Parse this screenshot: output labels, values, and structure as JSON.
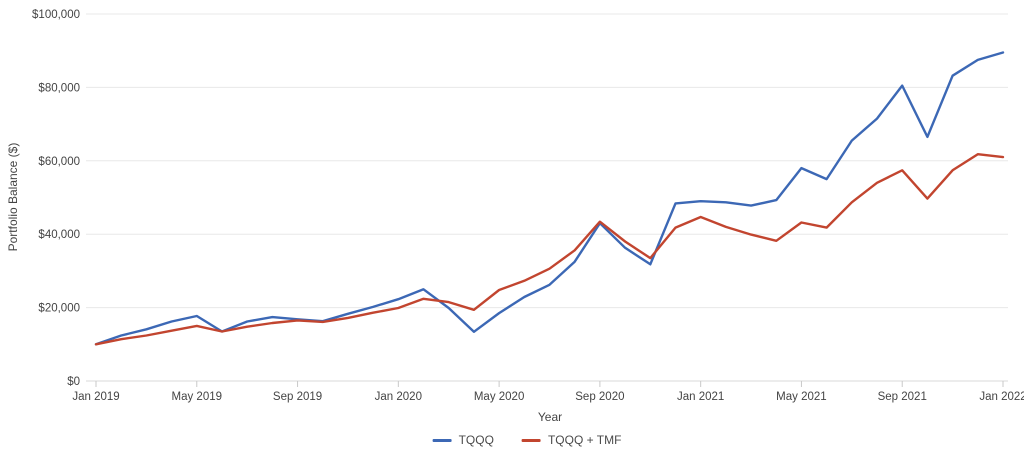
{
  "chart_data": {
    "type": "line",
    "title": "",
    "xlabel": "Year",
    "ylabel": "Portfolio Balance ($)",
    "x_tick_labels": [
      "Jan 2019",
      "May 2019",
      "Sep 2019",
      "Jan 2020",
      "May 2020",
      "Sep 2020",
      "Jan 2021",
      "May 2021",
      "Sep 2021",
      "Jan 2022"
    ],
    "x_tick_indices": [
      0,
      4,
      8,
      12,
      16,
      20,
      24,
      28,
      32,
      36
    ],
    "x_interval": "monthly",
    "y_ticks": [
      0,
      20000,
      40000,
      60000,
      80000,
      100000
    ],
    "y_tick_labels": [
      "$0",
      "$20,000",
      "$40,000",
      "$60,000",
      "$80,000",
      "$100,000"
    ],
    "ylim": [
      0,
      100000
    ],
    "grid": true,
    "legend_position": "bottom-center",
    "series": [
      {
        "name": "TQQQ",
        "color": "#3c68b5",
        "values": [
          10000,
          12400,
          14100,
          16200,
          17700,
          13500,
          16200,
          17400,
          16800,
          16300,
          18300,
          20200,
          22300,
          25000,
          19900,
          13400,
          18500,
          22900,
          26200,
          32500,
          43000,
          36300,
          31800,
          48400,
          49000,
          48700,
          47800,
          49300,
          58000,
          55000,
          65500,
          71500,
          80500,
          66500,
          83200,
          87500,
          89500
        ]
      },
      {
        "name": "TQQQ + TMF",
        "color": "#c2452f",
        "values": [
          10000,
          11400,
          12400,
          13700,
          15000,
          13500,
          14800,
          15800,
          16500,
          16100,
          17200,
          18600,
          19900,
          22400,
          21500,
          19400,
          24800,
          27300,
          30600,
          35600,
          43400,
          38000,
          33500,
          41800,
          44700,
          42000,
          39900,
          38200,
          43200,
          41800,
          48700,
          54000,
          57400,
          49700,
          57400,
          61800,
          61000
        ]
      }
    ]
  }
}
